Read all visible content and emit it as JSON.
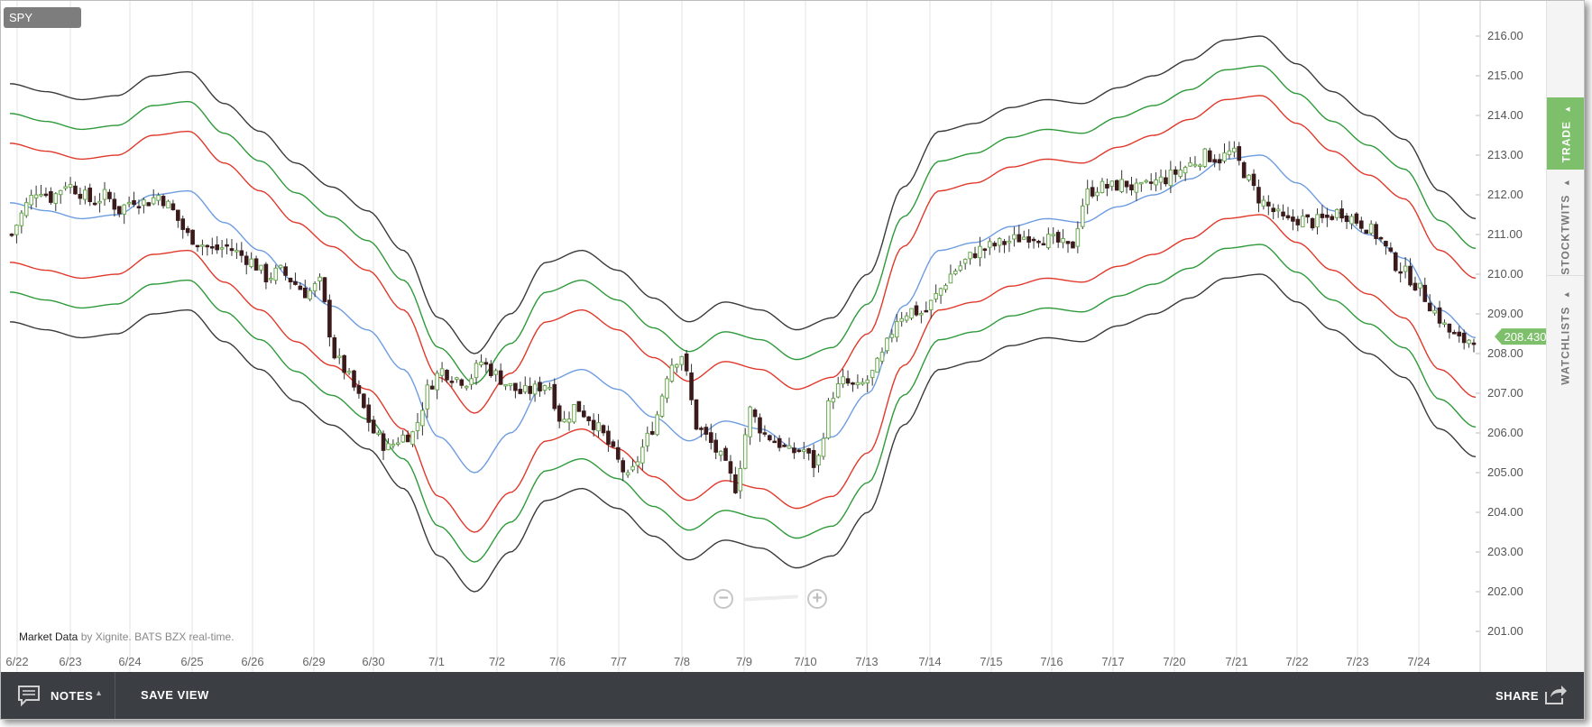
{
  "symbol": "SPY",
  "credit": {
    "source": "Market Data",
    "detail": "by Xignite. BATS BZX real-time."
  },
  "rail": {
    "tabs": [
      {
        "label": "TRADE",
        "caret": "▲",
        "active": true
      },
      {
        "label": "STOCKTWITS",
        "caret": "▲",
        "active": false
      },
      {
        "label": "WATCHLISTS",
        "caret": "▲",
        "active": false
      }
    ]
  },
  "toolbar": {
    "notes_label": "NOTES",
    "notes_caret": "▲",
    "save_view_label": "SAVE VIEW",
    "share_label": "SHARE"
  },
  "zoom": {
    "out_label": "−",
    "in_label": "+"
  },
  "icons": {
    "notes": "speech-bubble-icon",
    "share": "share-arrow-icon",
    "zoom_out": "minus-circle-icon",
    "zoom_in": "plus-circle-icon"
  },
  "colors": {
    "up_candle": "#6aa84f",
    "down_candle": "#3a1a1a",
    "mid_band": "#6d9de0",
    "band_1": "#e0392b",
    "band_2": "#2e9a3a",
    "band_3": "#3a3a3a",
    "last_price_tag": "#7dbf6a"
  },
  "chart_data": {
    "type": "candlestick",
    "symbol": "SPY",
    "indicator": "envelope bands (3 pairs) around a moving average",
    "ylim": [
      200.5,
      216.5
    ],
    "y_ticks": [
      "201.00",
      "202.00",
      "203.00",
      "204.00",
      "205.00",
      "206.00",
      "207.00",
      "208.00",
      "209.00",
      "210.00",
      "211.00",
      "212.00",
      "213.00",
      "214.00",
      "215.00",
      "216.00"
    ],
    "x_ticks": [
      "6/22",
      "6/23",
      "6/24",
      "6/25",
      "6/26",
      "6/29",
      "6/30",
      "7/1",
      "7/2",
      "7/6",
      "7/7",
      "7/8",
      "7/9",
      "7/10",
      "7/13",
      "7/14",
      "7/15",
      "7/16",
      "7/17",
      "7/20",
      "7/21",
      "7/22",
      "7/23",
      "7/24"
    ],
    "last_price": "208.430",
    "close_path": [
      211.0,
      211.7,
      212.2,
      211.9,
      212.3,
      212.1,
      211.8,
      212.0,
      211.6,
      211.9,
      211.8,
      212.0,
      211.6,
      211.0,
      210.8,
      210.6,
      210.7,
      210.5,
      210.3,
      209.9,
      210.1,
      209.8,
      209.5,
      209.8,
      208.0,
      207.5,
      206.8,
      206.0,
      205.6,
      205.9,
      206.0,
      207.1,
      207.6,
      207.4,
      207.3,
      207.8,
      207.5,
      207.2,
      207.0,
      207.1,
      207.3,
      206.2,
      206.7,
      206.4,
      206.0,
      205.4,
      204.8,
      205.6,
      206.3,
      207.7,
      208.0,
      206.2,
      205.8,
      205.3,
      204.6,
      206.6,
      206.0,
      205.8,
      205.5,
      205.6,
      205.1,
      206.9,
      207.3,
      207.1,
      207.4,
      208.0,
      208.9,
      209.1,
      209.0,
      209.5,
      210.0,
      210.3,
      210.6,
      210.7,
      210.8,
      210.9,
      211.0,
      210.9,
      210.8,
      210.6,
      212.0,
      212.2,
      212.2,
      212.3,
      212.1,
      212.3,
      212.4,
      212.6,
      212.8,
      213.0,
      212.9,
      213.1,
      212.5,
      211.9,
      211.6,
      211.3,
      211.4,
      211.3,
      211.4,
      211.6,
      211.4,
      211.2,
      210.9,
      210.3,
      210.0,
      209.6,
      209.1,
      208.6,
      208.3,
      208.4
    ],
    "mid_band": [
      211.8,
      211.6,
      211.4,
      211.5,
      212.0,
      212.1,
      211.3,
      210.6,
      209.8,
      209.2,
      208.6,
      207.6,
      205.9,
      205.0,
      206.0,
      207.3,
      207.6,
      207.1,
      206.4,
      205.8,
      206.3,
      206.1,
      205.6,
      205.9,
      207.0,
      209.2,
      210.6,
      210.8,
      211.2,
      211.4,
      211.3,
      211.7,
      212.0,
      212.4,
      212.9,
      213.0,
      212.3,
      211.6,
      211.0,
      210.4,
      209.1,
      208.4
    ]
  }
}
